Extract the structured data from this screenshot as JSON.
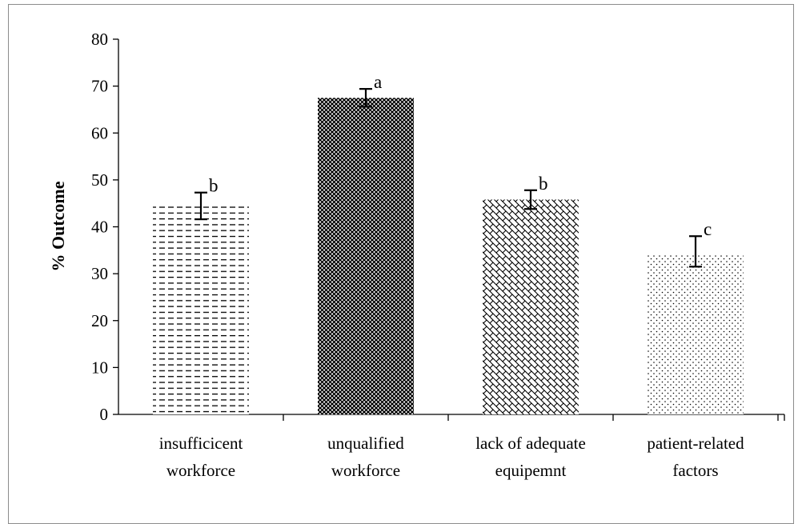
{
  "chart_data": {
    "type": "bar",
    "title": "",
    "xlabel": "",
    "ylabel": "% Outcome",
    "ylim": [
      0,
      80
    ],
    "yticks": [
      0,
      10,
      20,
      30,
      40,
      50,
      60,
      70,
      80
    ],
    "grid": false,
    "legend": "none",
    "categories": [
      [
        "insufficicent",
        "workforce"
      ],
      [
        "unqualified",
        "workforce"
      ],
      [
        "lack of adequate",
        "equipemnt"
      ],
      [
        "patient-related",
        "factors"
      ]
    ],
    "values": [
      44.5,
      67.5,
      45.8,
      34.2
    ],
    "error_low": [
      41.6,
      65.6,
      43.8,
      31.5
    ],
    "error_high": [
      47.3,
      69.4,
      47.8,
      38.0
    ],
    "significance_letters": [
      "b",
      "a",
      "b",
      "c"
    ],
    "bar_patterns": [
      "dashes",
      "dense-diamond",
      "zigzag",
      "dots"
    ],
    "colors": {
      "pattern_ink": "#000000",
      "bar_background": "#ffffff",
      "axis": "#000000",
      "frame": "#8c8c8c"
    }
  }
}
